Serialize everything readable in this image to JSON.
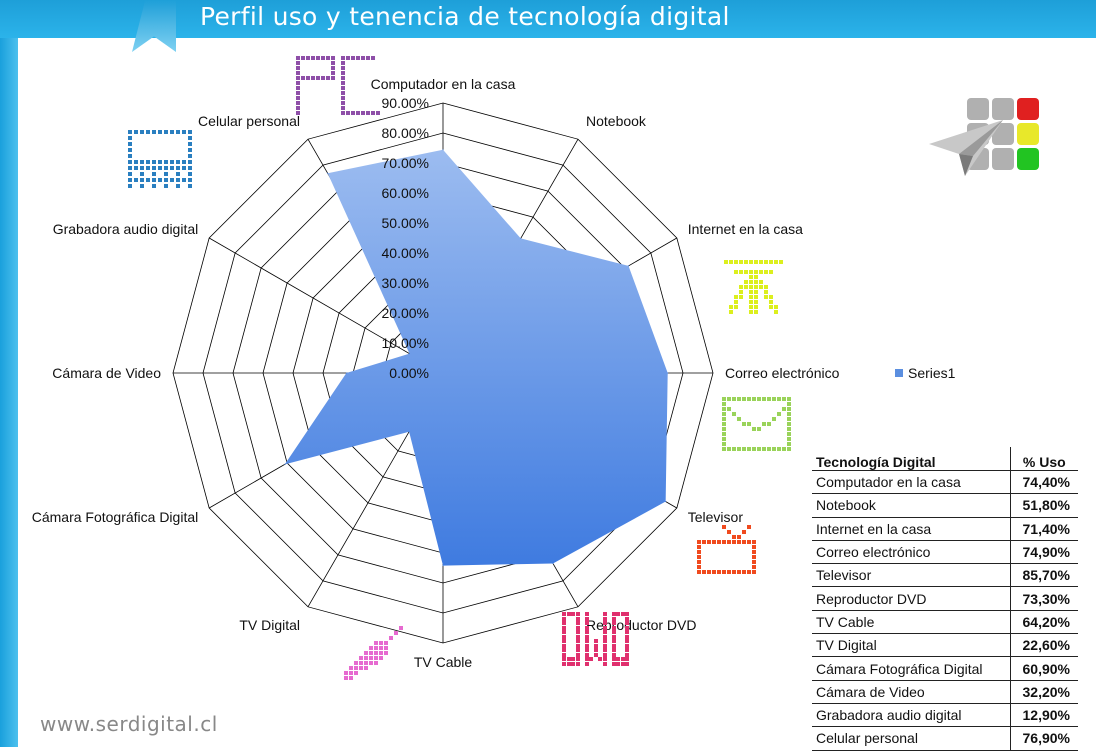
{
  "header": {
    "title": "Perfil uso y tenencia de tecnología digital"
  },
  "footer": {
    "url": "www.serdigital.cl"
  },
  "legend": {
    "series_label": "Series1"
  },
  "table": {
    "col_tech": "Tecnología Digital",
    "col_pct": "% Uso",
    "rows": [
      {
        "tech": "Computador en la casa",
        "pct": "74,40%"
      },
      {
        "tech": "Notebook",
        "pct": "51,80%"
      },
      {
        "tech": "Internet en la casa",
        "pct": "71,40%"
      },
      {
        "tech": "Correo electrónico",
        "pct": "74,90%"
      },
      {
        "tech": "Televisor",
        "pct": "85,70%"
      },
      {
        "tech": "Reproductor DVD",
        "pct": "73,30%"
      },
      {
        "tech": "TV Cable",
        "pct": "64,20%"
      },
      {
        "tech": "TV Digital",
        "pct": "22,60%"
      },
      {
        "tech": "Cámara Fotográfica Digital",
        "pct": "60,90%"
      },
      {
        "tech": "Cámara de Video",
        "pct": "32,20%"
      },
      {
        "tech": "Grabadora audio digital",
        "pct": "12,90%"
      },
      {
        "tech": "Celular personal",
        "pct": "76,90%"
      }
    ]
  },
  "icons": {
    "pc": {
      "name": "pc-icon",
      "text": "PC",
      "color": "#8e4fa8"
    },
    "laptop": {
      "name": "laptop-icon",
      "color": "#2a7fc0"
    },
    "antenna": {
      "name": "antenna-icon",
      "color": "#dcef1e"
    },
    "mail": {
      "name": "mail-icon",
      "color": "#9ad35a"
    },
    "tv": {
      "name": "tv-icon",
      "color": "#f04a1e"
    },
    "dvd": {
      "name": "dvd-icon",
      "text": "DVD",
      "color": "#e0306e"
    },
    "cable": {
      "name": "cable-icon",
      "color": "#e66ad0"
    },
    "logo": {
      "name": "serdigital-logo",
      "colors": [
        "#b0b0b0",
        "#b0b0b0",
        "#e02020",
        "#b0b0b0",
        "#b0b0b0",
        "#e8e82a",
        "#b0b0b0",
        "#b0b0b0",
        "#22c422"
      ]
    }
  },
  "chart_data": {
    "type": "radar",
    "categories": [
      "Computador en la casa",
      "Notebook",
      "Internet en la casa",
      "Correo electrónico",
      "Televisor",
      "Reproductor DVD",
      "TV Cable",
      "TV Digital",
      "Cámara Fotográfica Digital",
      "Cámara de Video",
      "Grabadora audio digital",
      "Celular personal"
    ],
    "series": [
      {
        "name": "Series1",
        "values": [
          0.744,
          0.518,
          0.714,
          0.749,
          0.857,
          0.733,
          0.642,
          0.226,
          0.609,
          0.322,
          0.129,
          0.769
        ]
      }
    ],
    "rmax": 0.9,
    "ticks": [
      "0.00%",
      "10.00%",
      "20.00%",
      "30.00%",
      "40.00%",
      "50.00%",
      "60.00%",
      "70.00%",
      "80.00%",
      "90.00%"
    ],
    "legend": "right",
    "colors": {
      "fill_top": "#9cbcf0",
      "fill_bottom": "#3f7be0",
      "grid": "#000000"
    }
  }
}
